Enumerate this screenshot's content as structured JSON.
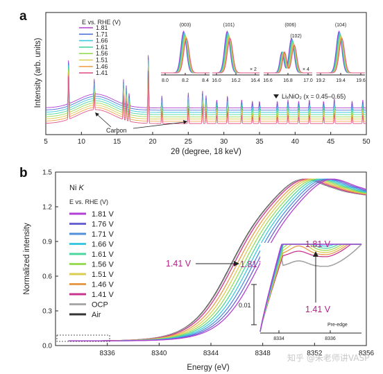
{
  "watermark": "知乎 @朱老师讲VASP",
  "chart_data": [
    {
      "panel": "a",
      "type": "line",
      "xlabel": "2θ (degree, 18 keV)",
      "ylabel": "Intensity (arb. units)",
      "xlim": [
        5,
        50
      ],
      "xticks": [
        "5",
        "10",
        "15",
        "20",
        "25",
        "30",
        "35",
        "40",
        "45",
        "50"
      ],
      "legend_title": "E vs. RHE (V)",
      "series": [
        {
          "name": "1.81",
          "color": "#b23fd4"
        },
        {
          "name": "1.71",
          "color": "#4f6fd8"
        },
        {
          "name": "1.66",
          "color": "#3cc9e0"
        },
        {
          "name": "1.61",
          "color": "#4ad6a0"
        },
        {
          "name": "1.56",
          "color": "#98dc55"
        },
        {
          "name": "1.51",
          "color": "#dccc52"
        },
        {
          "name": "1.46",
          "color": "#f0a54a"
        },
        {
          "name": "1.41",
          "color": "#e2558a"
        }
      ],
      "peaks_2theta": [
        8.2,
        11.8,
        15.9,
        16.3,
        16.7,
        19.4,
        21.3,
        25.0,
        27.0,
        27.5,
        29.0,
        30.5,
        32.5,
        34.0,
        35.0,
        37.5,
        39.0,
        40.5,
        42.0,
        44.0,
        45.5,
        48.0,
        49.5
      ],
      "annotations": [
        "Carbon",
        "LiₓNiO₂ (x = 0.45–0.65)"
      ],
      "insets": [
        {
          "label": "(003)",
          "xticks": [
            "8.0",
            "8.2",
            "8.4"
          ]
        },
        {
          "label": "(101)",
          "xticks": [
            "16.0",
            "16.2",
            "16.4"
          ],
          "note": "× 2"
        },
        {
          "label": "(006)",
          "label2": "(102)",
          "xticks": [
            "16.6",
            "16.8",
            "17.0"
          ],
          "note": "× 4"
        },
        {
          "label": "(104)",
          "xticks": [
            "19.2",
            "19.4",
            "19.6"
          ]
        }
      ]
    },
    {
      "panel": "b",
      "type": "line",
      "title": "Ni K",
      "xlabel": "Energy (eV)",
      "ylabel": "Normalized intensity",
      "xlim": [
        8332,
        8356
      ],
      "ylim": [
        0,
        1.5
      ],
      "xticks": [
        "8336",
        "8340",
        "8344",
        "8348",
        "8352",
        "8356"
      ],
      "yticks": [
        "0.0",
        "0.3",
        "0.6",
        "0.9",
        "1.2",
        "1.5"
      ],
      "legend_title": "E vs. RHE (V)",
      "series": [
        {
          "name": "1.81 V",
          "color": "#b23fd4",
          "shift": 2.2
        },
        {
          "name": "1.76 V",
          "color": "#6a63d2",
          "shift": 1.95
        },
        {
          "name": "1.71 V",
          "color": "#4f8fdc",
          "shift": 1.7
        },
        {
          "name": "1.66 V",
          "color": "#3cc9e0",
          "shift": 1.45
        },
        {
          "name": "1.61 V",
          "color": "#4ad69c",
          "shift": 1.2
        },
        {
          "name": "1.56 V",
          "color": "#98dc55",
          "shift": 0.95
        },
        {
          "name": "1.51 V",
          "color": "#dccc52",
          "shift": 0.7
        },
        {
          "name": "1.46 V",
          "color": "#e89a4c",
          "shift": 0.45
        },
        {
          "name": "1.41 V",
          "color": "#c9338f",
          "shift": 0.2
        },
        {
          "name": "OCP",
          "color": "#a8a8a8",
          "shift": 0.05
        },
        {
          "name": "Air",
          "color": "#333333",
          "shift": 0.0
        }
      ],
      "annotation_shift": {
        "from": "1.41 V",
        "to": "1.81 V"
      },
      "inset": {
        "xticks": [
          "8334",
          "8336"
        ],
        "scale": "0.01",
        "label": "Pre-edge",
        "top": "1.81 V",
        "bottom": "1.41 V"
      }
    }
  ]
}
